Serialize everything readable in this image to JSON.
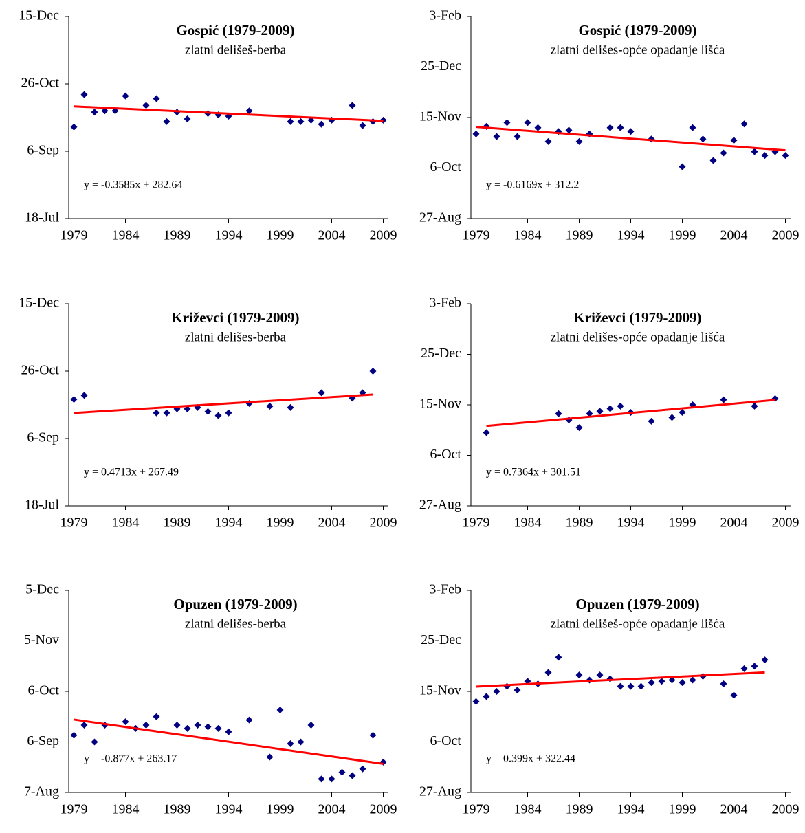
{
  "chart_data": [
    {
      "type": "scatter",
      "title": "Gospić (1979-2009)",
      "subtitle": "zlatni delišeš-berba",
      "x": [
        1979,
        1980,
        1981,
        1982,
        1983,
        1984,
        1986,
        1987,
        1988,
        1989,
        1990,
        1992,
        1993,
        1994,
        1996,
        2000,
        2001,
        2002,
        2003,
        2004,
        2006,
        2007,
        2008,
        2009
      ],
      "values": [
        267,
        291,
        278,
        279,
        279,
        290,
        283,
        288,
        271,
        278,
        273,
        277,
        276,
        275,
        279,
        271,
        271,
        272,
        269,
        272,
        283,
        268,
        271,
        272
      ],
      "color": "#000080",
      "trendline": {
        "label": "y = -0.3585x + 282.64",
        "slope": -0.3585,
        "intercept": 282.64,
        "color": "#ff0000"
      },
      "xlim": [
        1978.5,
        2009.5
      ],
      "xticks": [
        1979,
        1984,
        1989,
        1994,
        1999,
        2004,
        2009
      ],
      "ylim": [
        199,
        349
      ],
      "yticks": [
        {
          "value": 199,
          "label": "18-Jul"
        },
        {
          "value": 249,
          "label": "6-Sep"
        },
        {
          "value": 299,
          "label": "26-Oct"
        },
        {
          "value": 349,
          "label": "15-Dec"
        }
      ]
    },
    {
      "type": "scatter",
      "title": "Gospić (1979-2009)",
      "subtitle": "zlatni delišes-opće opadanje lišća",
      "x": [
        1979,
        1980,
        1981,
        1982,
        1983,
        1984,
        1985,
        1986,
        1987,
        1988,
        1989,
        1990,
        1992,
        1993,
        1994,
        1996,
        1999,
        2000,
        2001,
        2002,
        2003,
        2004,
        2005,
        2006,
        2007,
        2008,
        2009
      ],
      "values": [
        306,
        312,
        304,
        315,
        304,
        315,
        311,
        300,
        308,
        309,
        300,
        306,
        311,
        311,
        308,
        302,
        280,
        311,
        302,
        285,
        291,
        301,
        314,
        292,
        289,
        292,
        289
      ],
      "color": "#000080",
      "trendline": {
        "label": "y = -0.6169x + 312.2",
        "slope": -0.6169,
        "intercept": 312.2,
        "color": "#ff0000"
      },
      "xlim": [
        1978.5,
        2009.5
      ],
      "xticks": [
        1979,
        1984,
        1989,
        1994,
        1999,
        2004,
        2009
      ],
      "ylim": [
        239,
        399
      ],
      "yticks": [
        {
          "value": 239,
          "label": "27-Aug"
        },
        {
          "value": 279,
          "label": "6-Oct"
        },
        {
          "value": 319,
          "label": "15-Nov"
        },
        {
          "value": 359,
          "label": "25-Dec"
        },
        {
          "value": 399,
          "label": "3-Feb"
        }
      ]
    },
    {
      "type": "scatter",
      "title": "Križevci (1979-2009)",
      "subtitle": "zlatni delišes-berba",
      "x": [
        1979,
        1980,
        1987,
        1988,
        1989,
        1990,
        1991,
        1992,
        1993,
        1994,
        1996,
        1998,
        2000,
        2003,
        2006,
        2007,
        2008
      ],
      "values": [
        278,
        281,
        268,
        268,
        271,
        271,
        272,
        269,
        266,
        268,
        275,
        273,
        272,
        283,
        279,
        283,
        299
      ],
      "color": "#000080",
      "trendline": {
        "label": "y = 0.4713x + 267.49",
        "slope": 0.4713,
        "intercept": 267.49,
        "color": "#ff0000"
      },
      "xlim": [
        1978.5,
        2009.5
      ],
      "xticks": [
        1979,
        1984,
        1989,
        1994,
        1999,
        2004,
        2009
      ],
      "ylim": [
        199,
        349
      ],
      "yticks": [
        {
          "value": 199,
          "label": "18-Jul"
        },
        {
          "value": 249,
          "label": "6-Sep"
        },
        {
          "value": 299,
          "label": "26-Oct"
        },
        {
          "value": 349,
          "label": "15-Dec"
        }
      ]
    },
    {
      "type": "scatter",
      "title": "Križevci (1979-2009)",
      "subtitle": "zlatni delišes-opće opadanje lišća",
      "x": [
        1980,
        1987,
        1988,
        1989,
        1990,
        1991,
        1992,
        1993,
        1994,
        1996,
        1998,
        1999,
        2000,
        2003,
        2006,
        2008
      ],
      "values": [
        297,
        312,
        307,
        301,
        312,
        314,
        316,
        318,
        313,
        306,
        309,
        313,
        319,
        323,
        318,
        324
      ],
      "color": "#000080",
      "trendline": {
        "label": "y = 0.7364x + 301.51",
        "slope": 0.7364,
        "intercept": 301.51,
        "color": "#ff0000"
      },
      "xlim": [
        1978.5,
        2009.5
      ],
      "xticks": [
        1979,
        1984,
        1989,
        1994,
        1999,
        2004,
        2009
      ],
      "ylim": [
        239,
        399
      ],
      "yticks": [
        {
          "value": 239,
          "label": "27-Aug"
        },
        {
          "value": 279,
          "label": "6-Oct"
        },
        {
          "value": 319,
          "label": "15-Nov"
        },
        {
          "value": 359,
          "label": "25-Dec"
        },
        {
          "value": 399,
          "label": "3-Feb"
        }
      ]
    },
    {
      "type": "scatter",
      "title": "Opuzen (1979-2009)",
      "subtitle": "zlatni delišes-berba",
      "x": [
        1979,
        1980,
        1981,
        1982,
        1984,
        1985,
        1986,
        1987,
        1989,
        1990,
        1991,
        1992,
        1993,
        1994,
        1996,
        1998,
        1999,
        2000,
        2001,
        2002,
        2003,
        2004,
        2005,
        2006,
        2007,
        2008,
        2009
      ],
      "values": [
        253,
        259,
        249,
        259,
        261,
        257,
        259,
        264,
        259,
        257,
        259,
        258,
        257,
        255,
        262,
        240,
        268,
        248,
        249,
        259,
        227,
        227,
        231,
        229,
        233,
        253,
        237
      ],
      "color": "#000080",
      "trendline": {
        "label": "y = -0.877x + 263.17",
        "slope": -0.877,
        "intercept": 263.17,
        "color": "#ff0000"
      },
      "xlim": [
        1978.5,
        2009.5
      ],
      "xticks": [
        1979,
        1984,
        1989,
        1994,
        1999,
        2004,
        2009
      ],
      "ylim": [
        219,
        339
      ],
      "yticks": [
        {
          "value": 219,
          "label": "7-Aug"
        },
        {
          "value": 249,
          "label": "6-Sep"
        },
        {
          "value": 279,
          "label": "6-Oct"
        },
        {
          "value": 309,
          "label": "5-Nov"
        },
        {
          "value": 339,
          "label": "5-Dec"
        }
      ]
    },
    {
      "type": "scatter",
      "title": "Opuzen (1979-2009)",
      "subtitle": "zlatni delišeš-opće opadanje lišća",
      "x": [
        1979,
        1980,
        1981,
        1982,
        1983,
        1984,
        1985,
        1986,
        1987,
        1989,
        1990,
        1991,
        1992,
        1993,
        1994,
        1995,
        1996,
        1997,
        1998,
        1999,
        2000,
        2001,
        2003,
        2004,
        2005,
        2006,
        2007
      ],
      "values": [
        311,
        315,
        319,
        323,
        320,
        327,
        325,
        334,
        346,
        332,
        328,
        332,
        329,
        323,
        323,
        323,
        326,
        327,
        328,
        326,
        328,
        331,
        325,
        316,
        337,
        339,
        344
      ],
      "color": "#000080",
      "trendline": {
        "label": "y = 0.399x + 322.44",
        "slope": 0.399,
        "intercept": 322.44,
        "color": "#ff0000"
      },
      "xlim": [
        1978.5,
        2009.5
      ],
      "xticks": [
        1979,
        1984,
        1989,
        1994,
        1999,
        2004,
        2009
      ],
      "ylim": [
        239,
        399
      ],
      "yticks": [
        {
          "value": 239,
          "label": "27-Aug"
        },
        {
          "value": 279,
          "label": "6-Oct"
        },
        {
          "value": 319,
          "label": "15-Nov"
        },
        {
          "value": 359,
          "label": "25-Dec"
        },
        {
          "value": 399,
          "label": "3-Feb"
        }
      ]
    }
  ]
}
